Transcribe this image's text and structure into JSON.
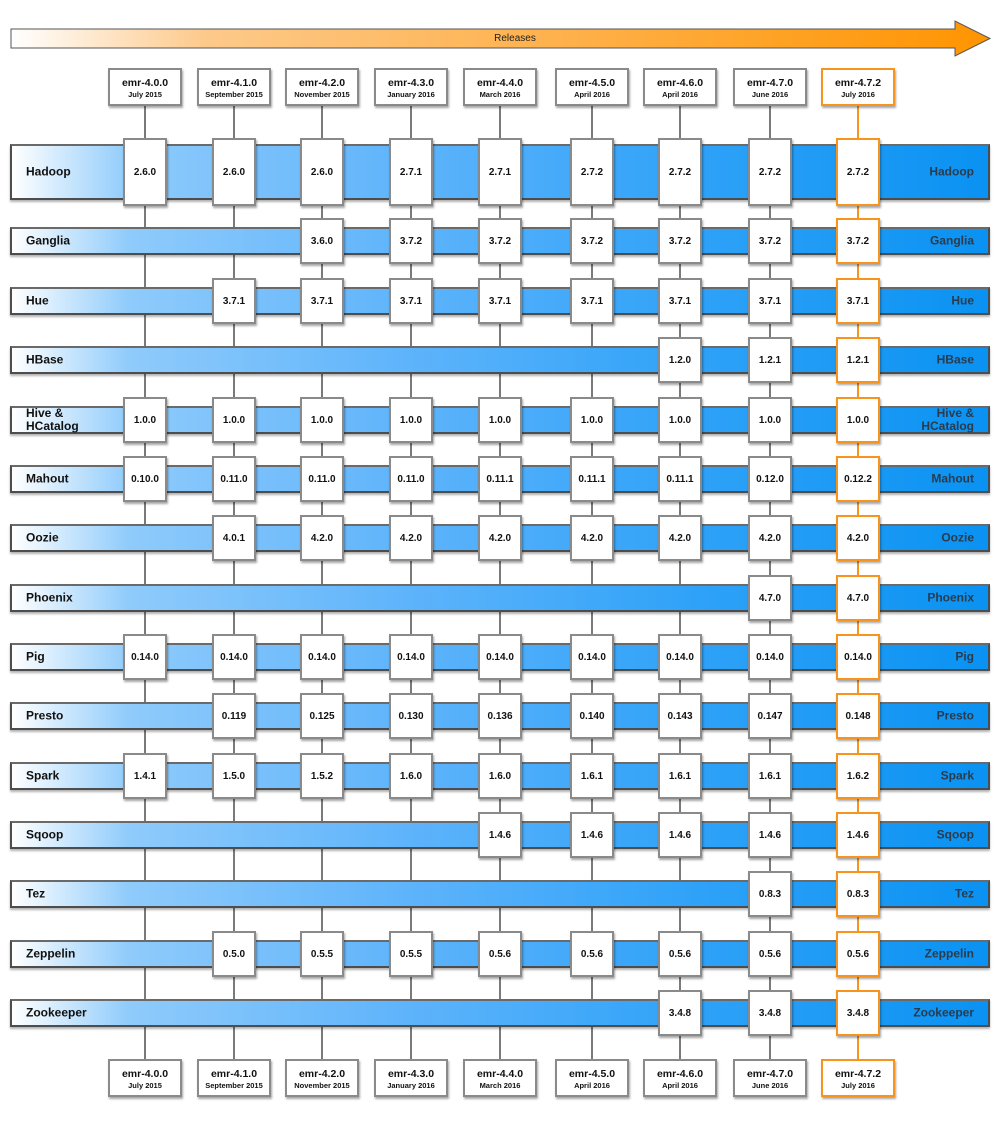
{
  "title": "Releases",
  "colors": {
    "highlight": "#f7941d",
    "bar_end": "#0a92f2",
    "arrow": "#ff9900"
  },
  "releases": [
    {
      "name": "emr-4.0.0",
      "date": "July 2015"
    },
    {
      "name": "emr-4.1.0",
      "date": "September 2015"
    },
    {
      "name": "emr-4.2.0",
      "date": "November 2015"
    },
    {
      "name": "emr-4.3.0",
      "date": "January 2016"
    },
    {
      "name": "emr-4.4.0",
      "date": "March 2016"
    },
    {
      "name": "emr-4.5.0",
      "date": "April 2016"
    },
    {
      "name": "emr-4.6.0",
      "date": "April 2016"
    },
    {
      "name": "emr-4.7.0",
      "date": "June 2016"
    },
    {
      "name": "emr-4.7.2",
      "date": "July 2016",
      "highlighted": true
    }
  ],
  "applications": [
    {
      "name": "Hadoop",
      "versions": [
        "2.6.0",
        "2.6.0",
        "2.6.0",
        "2.7.1",
        "2.7.1",
        "2.7.2",
        "2.7.2",
        "2.7.2",
        "2.7.2"
      ]
    },
    {
      "name": "Ganglia",
      "versions": [
        null,
        null,
        "3.6.0",
        "3.7.2",
        "3.7.2",
        "3.7.2",
        "3.7.2",
        "3.7.2",
        "3.7.2"
      ]
    },
    {
      "name": "Hue",
      "versions": [
        null,
        "3.7.1",
        "3.7.1",
        "3.7.1",
        "3.7.1",
        "3.7.1",
        "3.7.1",
        "3.7.1",
        "3.7.1"
      ]
    },
    {
      "name": "HBase",
      "versions": [
        null,
        null,
        null,
        null,
        null,
        null,
        "1.2.0",
        "1.2.1",
        "1.2.1"
      ]
    },
    {
      "name": "Hive & HCatalog",
      "versions": [
        "1.0.0",
        "1.0.0",
        "1.0.0",
        "1.0.0",
        "1.0.0",
        "1.0.0",
        "1.0.0",
        "1.0.0",
        "1.0.0"
      ]
    },
    {
      "name": "Mahout",
      "versions": [
        "0.10.0",
        "0.11.0",
        "0.11.0",
        "0.11.0",
        "0.11.1",
        "0.11.1",
        "0.11.1",
        "0.12.0",
        "0.12.2"
      ]
    },
    {
      "name": "Oozie",
      "versions": [
        null,
        "4.0.1",
        "4.2.0",
        "4.2.0",
        "4.2.0",
        "4.2.0",
        "4.2.0",
        "4.2.0",
        "4.2.0"
      ]
    },
    {
      "name": "Phoenix",
      "versions": [
        null,
        null,
        null,
        null,
        null,
        null,
        null,
        "4.7.0",
        "4.7.0"
      ]
    },
    {
      "name": "Pig",
      "versions": [
        "0.14.0",
        "0.14.0",
        "0.14.0",
        "0.14.0",
        "0.14.0",
        "0.14.0",
        "0.14.0",
        "0.14.0",
        "0.14.0"
      ]
    },
    {
      "name": "Presto",
      "versions": [
        null,
        "0.119",
        "0.125",
        "0.130",
        "0.136",
        "0.140",
        "0.143",
        "0.147",
        "0.148"
      ]
    },
    {
      "name": "Spark",
      "versions": [
        "1.4.1",
        "1.5.0",
        "1.5.2",
        "1.6.0",
        "1.6.0",
        "1.6.1",
        "1.6.1",
        "1.6.1",
        "1.6.2"
      ]
    },
    {
      "name": "Sqoop",
      "versions": [
        null,
        null,
        null,
        null,
        "1.4.6",
        "1.4.6",
        "1.4.6",
        "1.4.6",
        "1.4.6"
      ]
    },
    {
      "name": "Tez",
      "versions": [
        null,
        null,
        null,
        null,
        null,
        null,
        null,
        "0.8.3",
        "0.8.3"
      ]
    },
    {
      "name": "Zeppelin",
      "versions": [
        null,
        "0.5.0",
        "0.5.5",
        "0.5.5",
        "0.5.6",
        "0.5.6",
        "0.5.6",
        "0.5.6",
        "0.5.6"
      ]
    },
    {
      "name": "Zookeeper",
      "versions": [
        null,
        null,
        null,
        null,
        null,
        null,
        "3.4.8",
        "3.4.8",
        "3.4.8"
      ]
    }
  ]
}
